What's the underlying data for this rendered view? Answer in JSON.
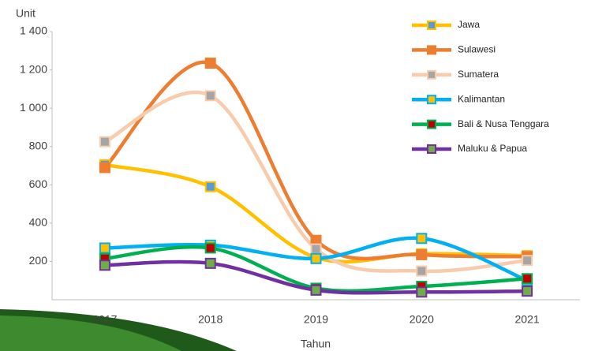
{
  "chart_data": {
    "type": "line",
    "y_label": "Unit",
    "x_label": "Tahun",
    "categories": [
      "2017",
      "2018",
      "2019",
      "2020",
      "2021"
    ],
    "series": [
      {
        "name": "Jawa",
        "color": "#ffc000",
        "marker_color": "#5b9bd5",
        "values": [
          705,
          590,
          220,
          240,
          230
        ]
      },
      {
        "name": "Sulawesi",
        "color": "#ed7d31",
        "marker_color": "#ed7d31",
        "values": [
          690,
          1235,
          310,
          235,
          225
        ]
      },
      {
        "name": "Sumatera",
        "color": "#f8cbad",
        "marker_color": "#a5a5a5",
        "values": [
          825,
          1065,
          265,
          150,
          205
        ]
      },
      {
        "name": "Kalimantan",
        "color": "#00b0f0",
        "marker_color": "#ffc000",
        "values": [
          270,
          285,
          215,
          320,
          100
        ]
      },
      {
        "name": "Bali & Nusa Tenggara",
        "color": "#00b050",
        "marker_color": "#c00000",
        "values": [
          215,
          270,
          60,
          70,
          110
        ]
      },
      {
        "name": "Maluku & Papua",
        "color": "#7030a0",
        "marker_color": "#70ad47",
        "values": [
          180,
          190,
          50,
          40,
          45
        ]
      }
    ],
    "ylim": [
      0,
      1400
    ],
    "yticks": [
      200,
      400,
      600,
      800,
      {
        "value": 1000,
        "label": "1 000"
      },
      {
        "value": 1200,
        "label": "1 200"
      },
      {
        "value": 1400,
        "label": "1 400"
      }
    ],
    "grid": false,
    "smooth": true,
    "legend": "upper right"
  }
}
